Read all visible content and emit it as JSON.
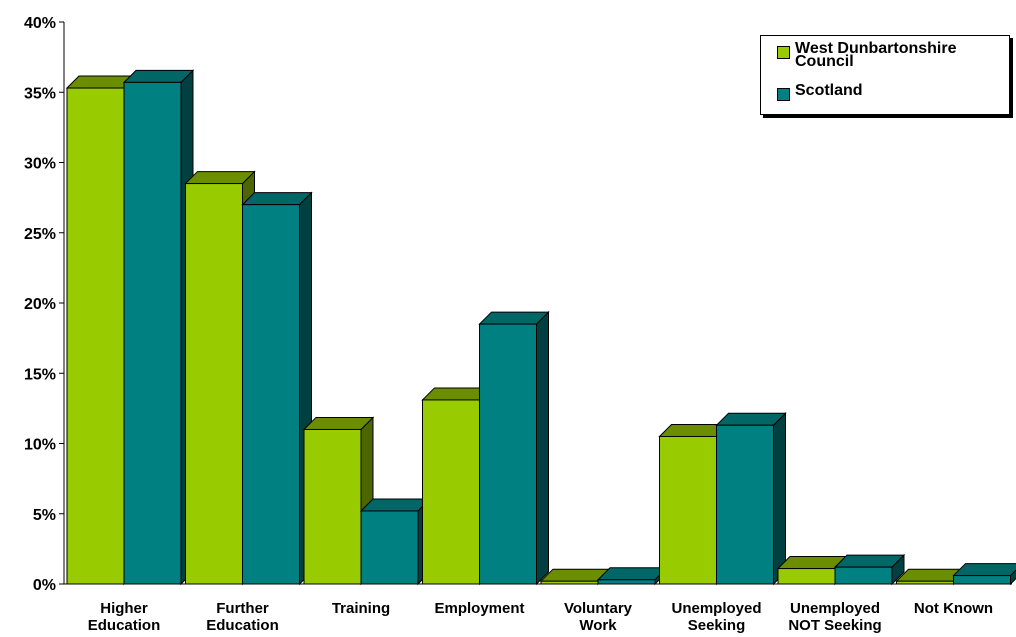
{
  "chart_data": {
    "type": "bar",
    "categories": [
      [
        "Higher",
        "Education"
      ],
      [
        "Further",
        "Education"
      ],
      [
        "Training"
      ],
      [
        "Employment"
      ],
      [
        "Voluntary",
        "Work"
      ],
      [
        "Unemployed",
        "Seeking"
      ],
      [
        "Unemployed",
        "NOT Seeking"
      ],
      [
        "Not Known"
      ]
    ],
    "series": [
      {
        "name": "West Dunbartonshire Council",
        "color": "#99cc00",
        "top_color": "#6b8e00",
        "side_color": "#4d6600",
        "values": [
          35.3,
          28.5,
          11.0,
          13.1,
          0.2,
          10.5,
          1.1,
          0.2
        ]
      },
      {
        "name": "Scotland",
        "color": "#008080",
        "top_color": "#006666",
        "side_color": "#004040",
        "values": [
          35.7,
          27.0,
          5.2,
          18.5,
          0.3,
          11.3,
          1.2,
          0.6
        ]
      }
    ],
    "yticks": [
      "0%",
      "5%",
      "10%",
      "15%",
      "20%",
      "25%",
      "30%",
      "35%",
      "40%"
    ],
    "ylim": [
      0,
      40
    ],
    "legend_position": "top-right",
    "grid": false
  }
}
